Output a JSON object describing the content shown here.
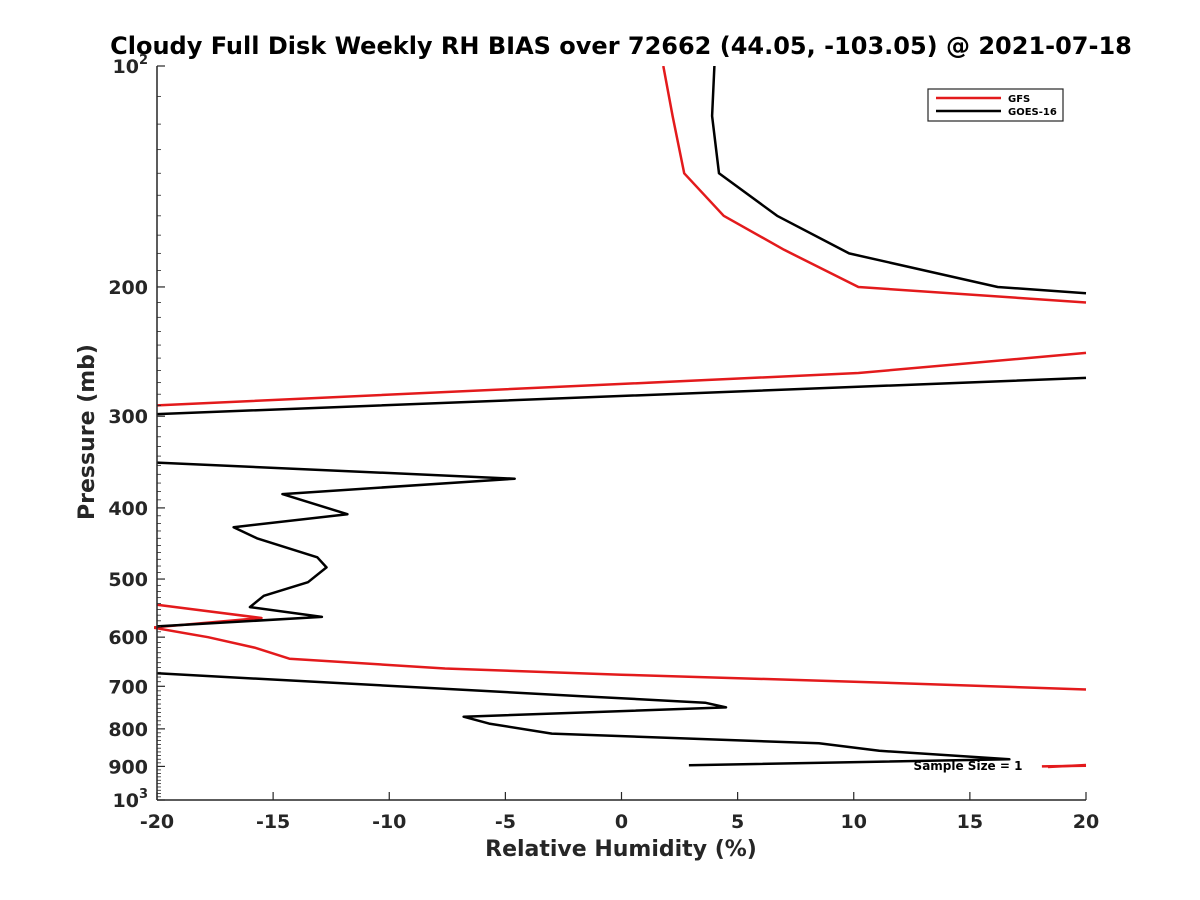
{
  "chart_data": {
    "type": "line",
    "title": "Cloudy Full Disk Weekly RH BIAS over 72662 (44.05, -103.05) @ 2021-07-18",
    "xlabel": "Relative Humidity (%)",
    "ylabel": "Pressure (mb)",
    "xlim": [
      -20,
      20
    ],
    "ylim": [
      100,
      1000
    ],
    "y_scale": "log",
    "y_reversed": true,
    "grid": false,
    "legend_position": "top-right",
    "x_ticks": [
      -20,
      -15,
      -10,
      -5,
      0,
      5,
      10,
      15,
      20
    ],
    "x_tick_labels": [
      "-20",
      "-15",
      "-10",
      "-5",
      "0",
      "5",
      "10",
      "15",
      "20"
    ],
    "y_ticks": [
      {
        "value": 100,
        "base": "10",
        "exp": "2"
      },
      {
        "value": 200,
        "label": "200"
      },
      {
        "value": 300,
        "label": "300"
      },
      {
        "value": 400,
        "label": "400"
      },
      {
        "value": 500,
        "label": "500"
      },
      {
        "value": 600,
        "label": "600"
      },
      {
        "value": 700,
        "label": "700"
      },
      {
        "value": 800,
        "label": "800"
      },
      {
        "value": 900,
        "label": "900"
      },
      {
        "value": 1000,
        "base": "10",
        "exp": "3"
      }
    ],
    "annotation": "Sample Size = 1",
    "series": [
      {
        "name": "GFS",
        "color": "#e31a1c",
        "points": [
          [
            1.8,
            100
          ],
          [
            2.2,
            117
          ],
          [
            2.7,
            140
          ],
          [
            4.4,
            160
          ],
          [
            7.0,
            178
          ],
          [
            10.2,
            200
          ],
          [
            20.0,
            210
          ],
          [
            null,
            null
          ],
          [
            20.0,
            246
          ],
          [
            10.2,
            262
          ],
          [
            -20.0,
            290
          ],
          [
            null,
            null
          ],
          [
            -20.0,
            542
          ],
          [
            -15.5,
            565
          ],
          [
            -20.2,
            582
          ],
          [
            -17.8,
            600
          ],
          [
            -15.8,
            620
          ],
          [
            -14.3,
            642
          ],
          [
            -7.6,
            662
          ],
          [
            0.0,
            675
          ],
          [
            10.0,
            690
          ],
          [
            20.0,
            707
          ],
          [
            null,
            null
          ],
          [
            18.1,
            900
          ],
          [
            20.0,
            898
          ]
        ]
      },
      {
        "name": "GOES-16",
        "color": "#000000",
        "points": [
          [
            4.0,
            100
          ],
          [
            3.9,
            117
          ],
          [
            4.2,
            140
          ],
          [
            6.7,
            160
          ],
          [
            9.8,
            180
          ],
          [
            16.2,
            200
          ],
          [
            20.0,
            204
          ],
          [
            null,
            null
          ],
          [
            20.0,
            266
          ],
          [
            -20.0,
            298
          ],
          [
            null,
            null
          ],
          [
            -20.0,
            347
          ],
          [
            -4.6,
            365
          ],
          [
            -14.6,
            383
          ],
          [
            -11.8,
            408
          ],
          [
            -16.7,
            425
          ],
          [
            -15.7,
            440
          ],
          [
            -13.1,
            467
          ],
          [
            -12.7,
            482
          ],
          [
            -13.5,
            505
          ],
          [
            -15.4,
            527
          ],
          [
            -16.0,
            546
          ],
          [
            -12.9,
            563
          ],
          [
            -20.0,
            580
          ],
          [
            null,
            null
          ],
          [
            -20.0,
            672
          ],
          [
            -1.7,
            722
          ],
          [
            3.6,
            737
          ],
          [
            4.5,
            748
          ],
          [
            -6.8,
            770
          ],
          [
            -5.7,
            787
          ],
          [
            -3.0,
            812
          ],
          [
            8.5,
            837
          ],
          [
            11.1,
            857
          ],
          [
            16.7,
            880
          ],
          [
            2.9,
            897
          ]
        ]
      }
    ]
  }
}
